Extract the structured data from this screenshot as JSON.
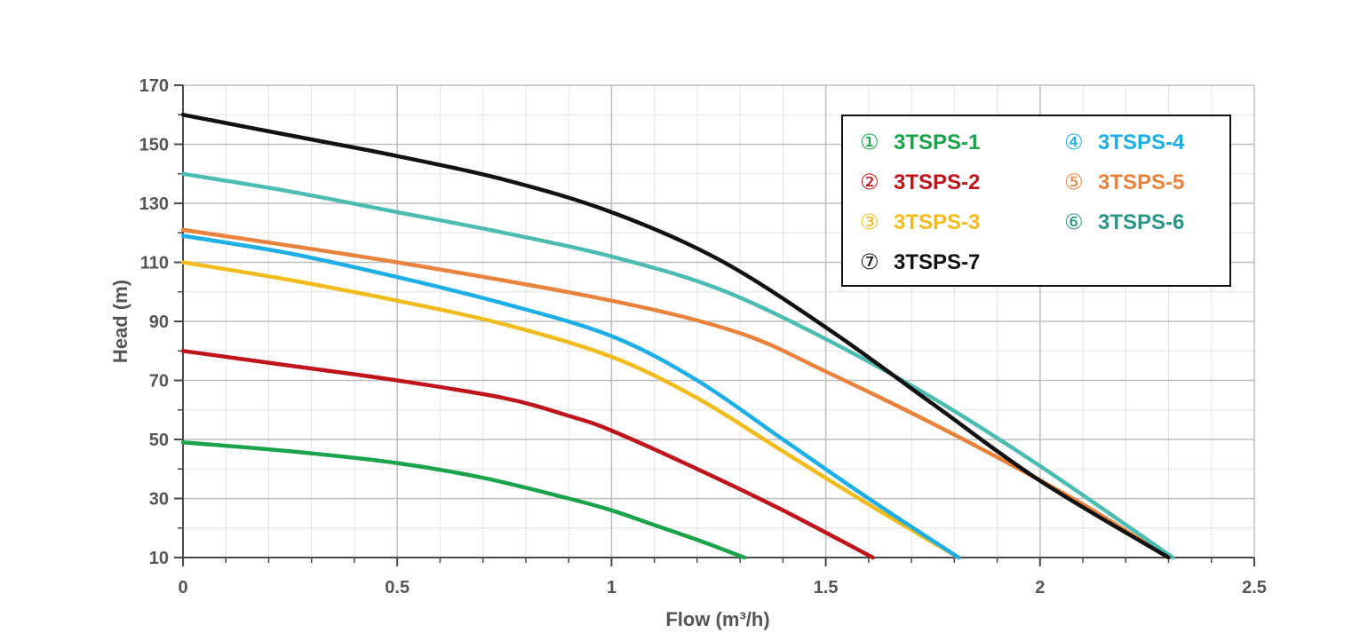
{
  "chart_data": {
    "type": "line",
    "title": "",
    "xlabel": "Flow (m³/h)",
    "ylabel": "Head (m)",
    "xlim": [
      0,
      2.5
    ],
    "ylim": [
      10,
      170
    ],
    "x_ticks": [
      "0",
      "0.5",
      "1",
      "1.5",
      "2",
      "2.5"
    ],
    "y_ticks": [
      "10",
      "30",
      "50",
      "70",
      "90",
      "110",
      "130",
      "150",
      "170"
    ],
    "grid": true,
    "legend_position": "top-right",
    "series": [
      {
        "name": "3TSPS-1",
        "marker": "①",
        "color": "#1aa34a",
        "x": [
          0,
          0.25,
          0.5,
          0.7,
          0.9,
          1.0,
          1.1,
          1.2,
          1.31
        ],
        "y": [
          49,
          46,
          42,
          37,
          30,
          26,
          21,
          16,
          10
        ]
      },
      {
        "name": "3TSPS-2",
        "marker": "②",
        "color": "#c0141c",
        "x": [
          0,
          0.25,
          0.5,
          0.75,
          0.9,
          1.0,
          1.2,
          1.4,
          1.61
        ],
        "y": [
          80,
          75,
          70,
          64,
          58,
          53,
          40,
          26,
          10
        ]
      },
      {
        "name": "3TSPS-3",
        "marker": "③",
        "color": "#f0bb1c",
        "x": [
          0,
          0.25,
          0.5,
          0.75,
          1.0,
          1.2,
          1.4,
          1.6,
          1.81
        ],
        "y": [
          110,
          104,
          97,
          89,
          78,
          64,
          46,
          28,
          10
        ]
      },
      {
        "name": "3TSPS-4",
        "marker": "④",
        "color": "#1eaee6",
        "x": [
          0,
          0.25,
          0.5,
          0.75,
          1.0,
          1.2,
          1.4,
          1.6,
          1.81
        ],
        "y": [
          119,
          113,
          105,
          96,
          85,
          70,
          50,
          30,
          10
        ]
      },
      {
        "name": "3TSPS-5",
        "marker": "⑤",
        "color": "#e8823c",
        "x": [
          0,
          0.5,
          1.0,
          1.3,
          1.5,
          1.7,
          1.9,
          2.1,
          2.3
        ],
        "y": [
          121,
          110,
          97,
          86,
          73,
          59,
          44,
          28,
          10
        ]
      },
      {
        "name": "3TSPS-6",
        "marker": "⑥",
        "color": "#4cbcb0",
        "x": [
          0,
          0.25,
          0.5,
          0.75,
          1.0,
          1.25,
          1.5,
          1.75,
          2.0,
          2.31
        ],
        "y": [
          140,
          134,
          127,
          120,
          112,
          101,
          84,
          64,
          41,
          10
        ]
      },
      {
        "name": "3TSPS-7",
        "marker": "⑦",
        "color": "#111111",
        "x": [
          0,
          0.25,
          0.5,
          0.75,
          1.0,
          1.25,
          1.5,
          1.75,
          2.0,
          2.3
        ],
        "y": [
          160,
          153,
          146,
          138,
          127,
          111,
          88,
          62,
          36,
          10
        ]
      }
    ],
    "legend_text_colors": [
      "#1aa34a",
      "#c0141c",
      "#f0bb1c",
      "#1eaee6",
      "#e8823c",
      "#2b9588",
      "#111111"
    ]
  }
}
